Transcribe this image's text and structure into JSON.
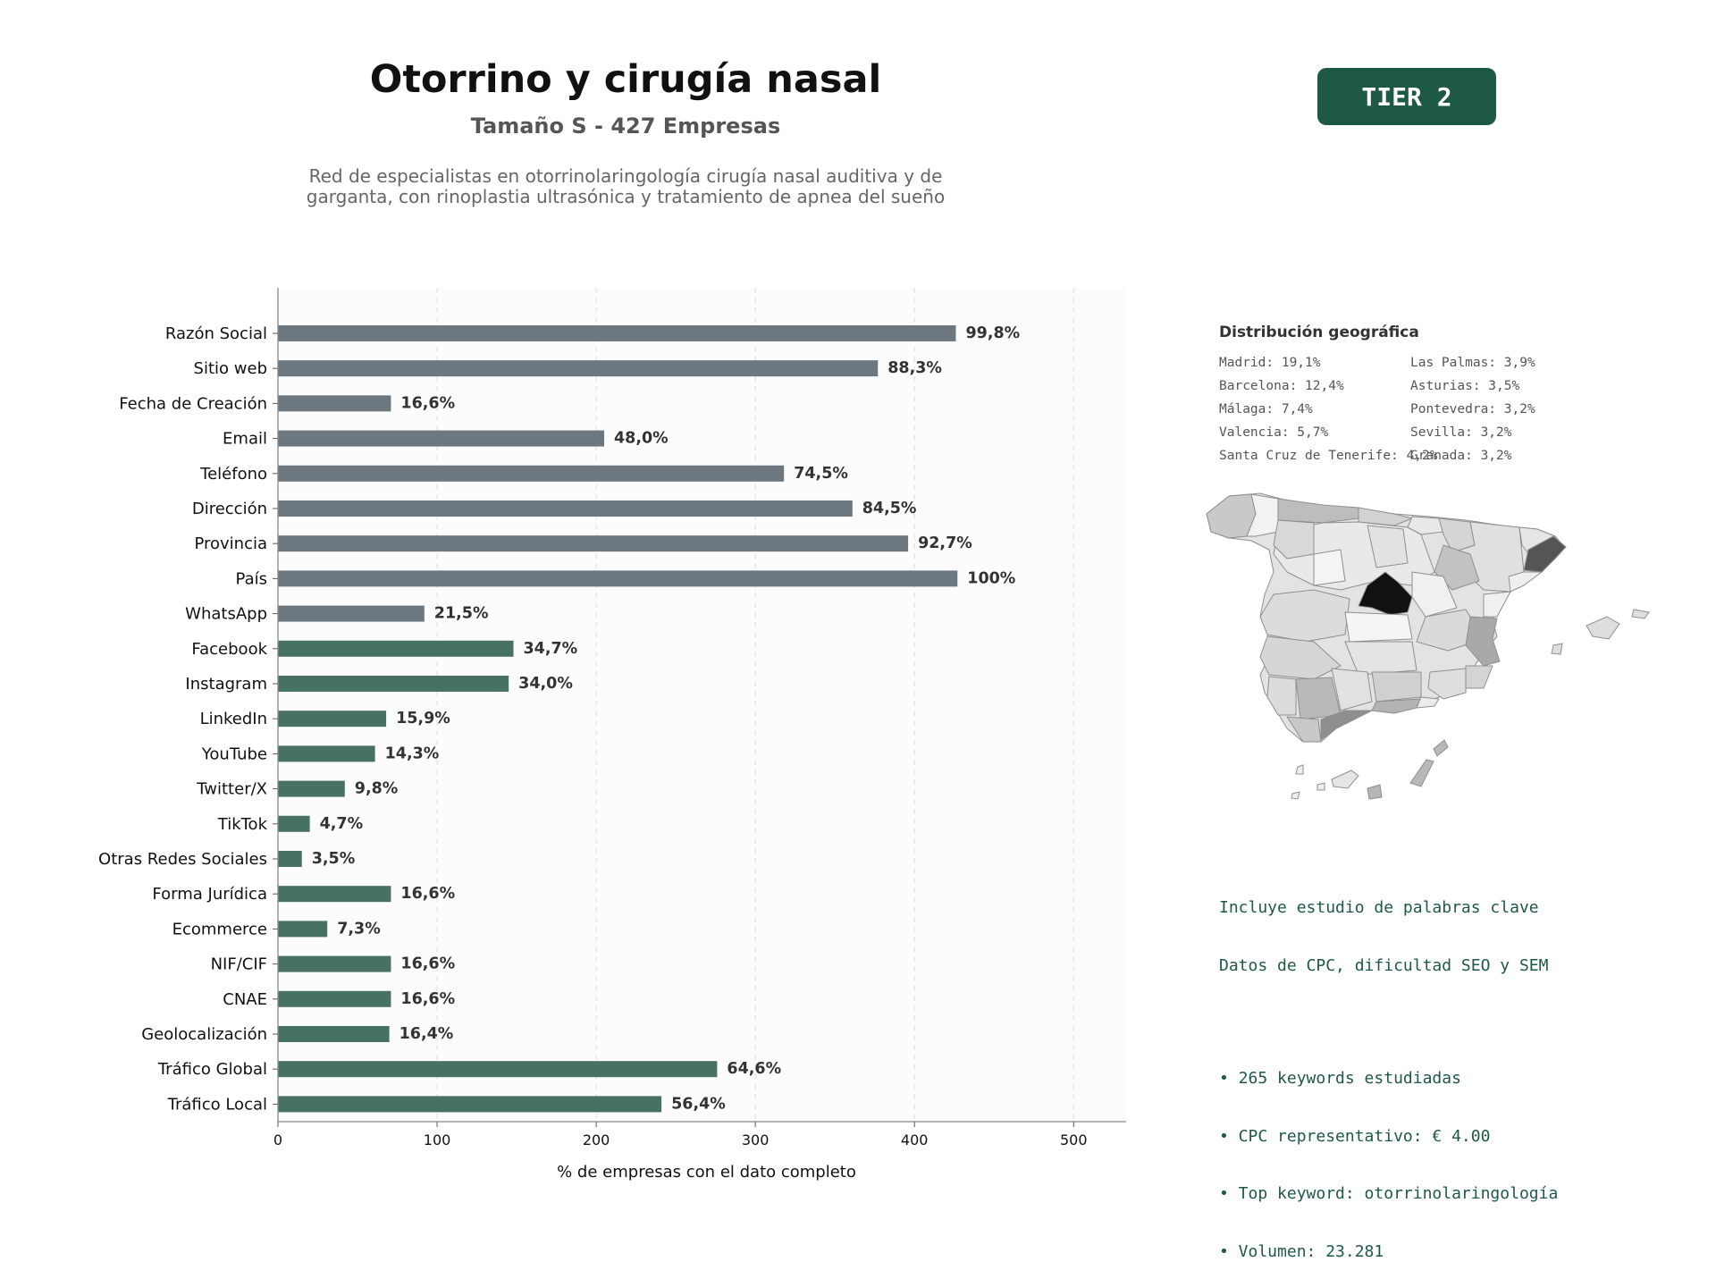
{
  "header": {
    "title": "Otorrino y cirugía nasal",
    "subtitle": "Tamaño S - 427 Empresas",
    "description": "Red de especialistas en otorrinolaringología cirugía nasal auditiva y de garganta, con rinoplastia ultrasónica y tratamiento de apnea del sueño",
    "tier_badge": "TIER 2"
  },
  "colors": {
    "gray_bar": "#6c7780",
    "green_bar": "#477262",
    "badge": "#1e5945",
    "keyword_text": "#1e5945"
  },
  "chart_data": {
    "type": "bar",
    "orientation": "horizontal",
    "categories": [
      "Razón Social",
      "Sitio web",
      "Fecha de Creación",
      "Email",
      "Teléfono",
      "Dirección",
      "Provincia",
      "País",
      "WhatsApp",
      "Facebook",
      "Instagram",
      "LinkedIn",
      "YouTube",
      "Twitter/X",
      "TikTok",
      "Otras Redes Sociales",
      "Forma Jurídica",
      "Ecommerce",
      "NIF/CIF",
      "CNAE",
      "Geolocalización",
      "Tráfico Global",
      "Tráfico Local"
    ],
    "values": [
      426,
      377,
      71,
      205,
      318,
      361,
      396,
      427,
      92,
      148,
      145,
      68,
      61,
      42,
      20,
      15,
      71,
      31,
      71,
      71,
      70,
      276,
      241
    ],
    "value_labels": [
      "99,8%",
      "88,3%",
      "16,6%",
      "48,0%",
      "74,5%",
      "84,5%",
      "92,7%",
      "100%",
      "21,5%",
      "34,7%",
      "34,0%",
      "15,9%",
      "14,3%",
      "9,8%",
      "4,7%",
      "3,5%",
      "16,6%",
      "7,3%",
      "16,6%",
      "16,6%",
      "16,4%",
      "64,6%",
      "56,4%"
    ],
    "bar_colors": [
      "gray",
      "gray",
      "gray",
      "gray",
      "gray",
      "gray",
      "gray",
      "gray",
      "gray",
      "green",
      "green",
      "green",
      "green",
      "green",
      "green",
      "green",
      "green",
      "green",
      "green",
      "green",
      "green",
      "green",
      "green"
    ],
    "xlabel": "% de empresas con el dato completo",
    "ylabel": "",
    "xlim": [
      0,
      533
    ],
    "xticks": [
      0,
      100,
      200,
      300,
      400,
      500
    ],
    "grid": "vertical dashed"
  },
  "geo": {
    "title": "Distribución geográfica",
    "items": [
      "Madrid: 19,1%",
      "Barcelona: 12,4%",
      "Málaga: 7,4%",
      "Valencia: 5,7%",
      "Santa Cruz de Tenerife: 4,2%",
      "Las Palmas: 3,9%",
      "Asturias: 3,5%",
      "Pontevedra: 3,2%",
      "Sevilla: 3,2%",
      "Granada: 3,2%"
    ]
  },
  "keywords": {
    "line1": "Incluye estudio de palabras clave",
    "line2": "Datos de CPC, dificultad SEO y SEM",
    "bullets": [
      "• 265 keywords estudiadas",
      "• CPC representativo: € 4.00",
      "• Top keyword: otorrinolaringología",
      "• Volumen: 23.281"
    ]
  }
}
